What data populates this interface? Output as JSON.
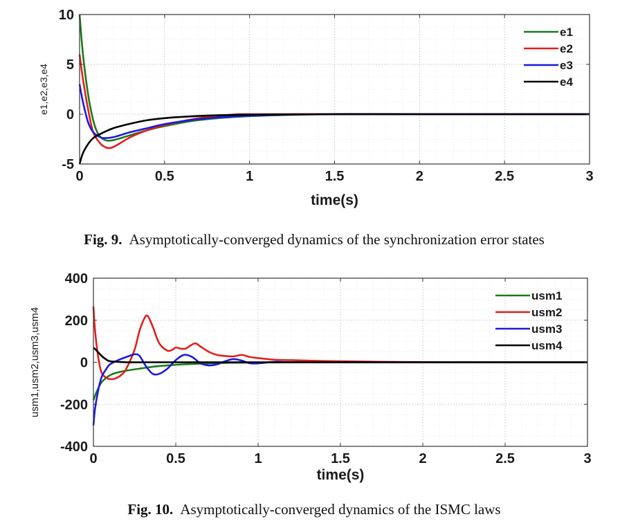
{
  "chart_data": [
    {
      "type": "line",
      "xlabel": "time(s)",
      "ylabel": "e1,e2,e3,e4",
      "xlim": [
        0,
        3
      ],
      "ylim": [
        -5,
        10
      ],
      "xticks": [
        "0",
        "0.5",
        "1",
        "1.5",
        "2",
        "2.5",
        "3"
      ],
      "yticks": [
        "10",
        "5",
        "0",
        "-5"
      ],
      "grid": true,
      "legend_position": "top-right",
      "caption_label": "Fig. 9.",
      "caption_text": "Asymptotically-converged dynamics of the synchronization error states",
      "series": [
        {
          "name": "e1",
          "color": "#1a7a1a",
          "x": [
            0,
            0.02,
            0.05,
            0.08,
            0.11,
            0.15,
            0.2,
            0.3,
            0.4,
            0.5,
            0.7,
            1.0,
            1.5,
            2,
            2.5,
            3
          ],
          "y": [
            10,
            6.0,
            2.0,
            -0.6,
            -2.0,
            -2.6,
            -2.6,
            -2.1,
            -1.6,
            -1.2,
            -0.6,
            -0.2,
            0,
            0,
            0,
            0
          ]
        },
        {
          "name": "e2",
          "color": "#e0201a",
          "x": [
            0,
            0.02,
            0.05,
            0.08,
            0.12,
            0.15,
            0.18,
            0.22,
            0.3,
            0.4,
            0.5,
            0.7,
            0.9,
            1.0,
            1.5,
            2,
            2.5,
            3
          ],
          "y": [
            6,
            3.5,
            0.5,
            -1.8,
            -2.9,
            -3.3,
            -3.4,
            -3.1,
            -2.3,
            -1.6,
            -1.1,
            -0.4,
            -0.05,
            0,
            0,
            0,
            0,
            0
          ]
        },
        {
          "name": "e3",
          "color": "#1a1ae0",
          "x": [
            0,
            0.02,
            0.05,
            0.08,
            0.12,
            0.15,
            0.2,
            0.3,
            0.4,
            0.5,
            0.7,
            1.0,
            1.5,
            2,
            2.5,
            3
          ],
          "y": [
            3,
            1.2,
            -0.8,
            -1.8,
            -2.3,
            -2.4,
            -2.3,
            -1.8,
            -1.4,
            -1.0,
            -0.5,
            -0.15,
            0,
            0,
            0,
            0
          ]
        },
        {
          "name": "e4",
          "color": "#000000",
          "x": [
            0,
            0.02,
            0.05,
            0.08,
            0.12,
            0.2,
            0.3,
            0.4,
            0.5,
            0.6,
            0.8,
            1.0,
            1.5,
            2,
            2.5,
            3
          ],
          "y": [
            -5,
            -3.9,
            -3.0,
            -2.4,
            -2.0,
            -1.4,
            -0.95,
            -0.6,
            -0.4,
            -0.27,
            -0.12,
            -0.05,
            0,
            0,
            0,
            0
          ]
        }
      ]
    },
    {
      "type": "line",
      "xlabel": "time(s)",
      "ylabel": "usm1,usm2,usm3,usm4",
      "xlim": [
        0,
        3
      ],
      "ylim": [
        -400,
        400
      ],
      "xticks": [
        "0",
        "0.5",
        "1",
        "1.5",
        "2",
        "2.5",
        "3"
      ],
      "yticks": [
        "400",
        "200",
        "0",
        "-200",
        "-400"
      ],
      "grid": true,
      "legend_position": "top-right",
      "caption_label": "Fig. 10.",
      "caption_text": "Asymptotically-converged dynamics of the ISMC laws",
      "series": [
        {
          "name": "usm1",
          "color": "#1a7a1a",
          "x": [
            0,
            0.02,
            0.05,
            0.1,
            0.15,
            0.2,
            0.3,
            0.4,
            0.5,
            0.6,
            0.8,
            1.0,
            1.5,
            2,
            2.5,
            3
          ],
          "y": [
            -180,
            -140,
            -95,
            -62,
            -48,
            -40,
            -28,
            -18,
            -12,
            -8,
            -3,
            -1,
            0,
            0,
            0,
            0
          ]
        },
        {
          "name": "usm2",
          "color": "#e0201a",
          "x": [
            0,
            0.01,
            0.03,
            0.05,
            0.08,
            0.1,
            0.13,
            0.17,
            0.2,
            0.25,
            0.28,
            0.31,
            0.33,
            0.36,
            0.4,
            0.45,
            0.48,
            0.5,
            0.53,
            0.56,
            0.59,
            0.62,
            0.65,
            0.7,
            0.75,
            0.8,
            0.85,
            0.9,
            0.95,
            1.0,
            1.1,
            1.2,
            1.4,
            1.6,
            1.8,
            2,
            2.5,
            3
          ],
          "y": [
            265,
            150,
            20,
            -50,
            -75,
            -80,
            -78,
            -60,
            -30,
            60,
            150,
            210,
            220,
            170,
            90,
            55,
            60,
            70,
            65,
            65,
            80,
            90,
            75,
            50,
            35,
            30,
            28,
            35,
            25,
            20,
            12,
            10,
            6,
            4,
            2,
            1,
            0,
            0
          ]
        },
        {
          "name": "usm3",
          "color": "#1a1ae0",
          "x": [
            0,
            0.01,
            0.03,
            0.05,
            0.08,
            0.1,
            0.15,
            0.2,
            0.25,
            0.28,
            0.32,
            0.36,
            0.4,
            0.45,
            0.5,
            0.55,
            0.6,
            0.65,
            0.7,
            0.75,
            0.8,
            0.85,
            0.9,
            0.95,
            1.0,
            1.1,
            1.2,
            1.5,
            2,
            2.5,
            3
          ],
          "y": [
            -300,
            -220,
            -130,
            -70,
            -30,
            -10,
            10,
            25,
            38,
            30,
            -20,
            -55,
            -55,
            -30,
            10,
            35,
            25,
            -5,
            -15,
            -10,
            5,
            15,
            8,
            -5,
            -5,
            2,
            0,
            0,
            0,
            0,
            0
          ]
        },
        {
          "name": "usm4",
          "color": "#000000",
          "x": [
            0,
            0.02,
            0.05,
            0.08,
            0.1,
            0.15,
            0.2,
            0.3,
            0.5,
            1,
            2,
            3
          ],
          "y": [
            70,
            55,
            30,
            12,
            5,
            2,
            0,
            0,
            0,
            0,
            0,
            0
          ]
        }
      ]
    }
  ]
}
